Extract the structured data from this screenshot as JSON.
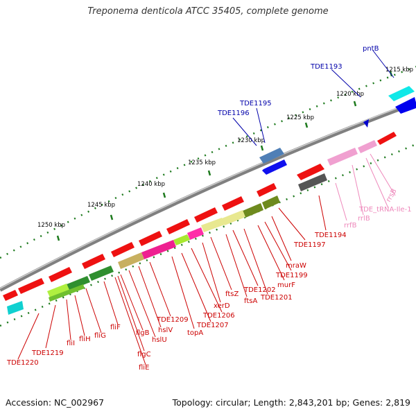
{
  "title": "Treponema denticola ATCC 35405, complete genome",
  "footer": {
    "accession": "Accession: NC_002967",
    "summary": "Topology: circular; Length: 2,843,201 bp; Genes: 2,819"
  },
  "colors": {
    "label_red": "#cc0000",
    "label_blue": "#0000aa",
    "label_pink": "#ee88bb",
    "backbone": "#808080",
    "tick_green": "#1e7a1e"
  },
  "scale_labels": [
    "1215 kbp",
    "1220 kbp",
    "1225 kbp",
    "1230 kbp",
    "1235 kbp",
    "1240 kbp",
    "1245 kbp",
    "1250 kbp"
  ],
  "gene_labels": {
    "red": [
      "TDE1197",
      "TDE1194",
      "mraW",
      "TDE1199",
      "murF",
      "TDE1201",
      "TDE1202",
      "ftsA",
      "ftsZ",
      "xerD",
      "TDE1206",
      "TDE1207",
      "topA",
      "TDE1209",
      "hslV",
      "hslU",
      "flgB",
      "fliE",
      "flgC",
      "fliF",
      "fliG",
      "fliH",
      "fliI",
      "TDE1219",
      "TDE1220"
    ],
    "blue": [
      "pntB",
      "TDE1193",
      "TDE1195",
      "TDE1196"
    ],
    "pink": [
      "rrsB",
      "TDE_tRNA-Ile-1",
      "rrlB",
      "rrfB"
    ]
  }
}
